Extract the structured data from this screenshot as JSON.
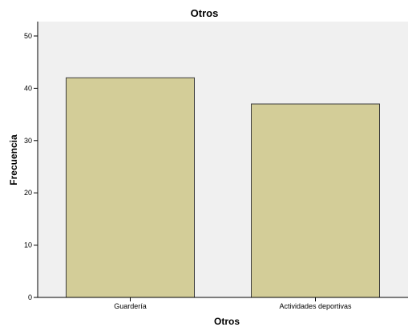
{
  "chart_data": {
    "type": "bar",
    "title": "Otros",
    "xlabel": "Otros",
    "ylabel": "Frecuencia",
    "categories": [
      "Guardería",
      "Actividades deportivas"
    ],
    "values": [
      42,
      37
    ],
    "ylim": [
      0,
      50
    ],
    "yticks": [
      "0",
      "10",
      "20",
      "30",
      "40",
      "50"
    ],
    "grid": false,
    "legend": "none",
    "colors": {
      "bar_fill": "#d3cd98",
      "bar_stroke": "#3c3c3c",
      "plot_background": "#f0f0f0",
      "axis": "#000000"
    }
  }
}
